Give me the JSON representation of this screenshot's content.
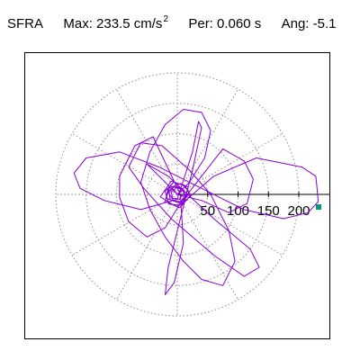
{
  "header": {
    "station": "SFRA",
    "max_label": "Max:",
    "max_value": "233.5",
    "max_unit": "cm/s",
    "max_unit_exp": "2",
    "per_label": "Per:",
    "per_value": "0.060 s",
    "ang_label": "Ang:",
    "ang_value": "-5.1"
  },
  "chart_data": {
    "type": "polar-orbit",
    "radial_ticks": [
      "50",
      "100",
      "150",
      "200"
    ],
    "radial_tick_values": [
      50,
      100,
      150,
      200
    ],
    "rmax": 250,
    "polar_grid": true,
    "max_amplitude": 233.5,
    "max_angle_deg": -5.1,
    "series": [
      {
        "color": "#8a00d4",
        "points": [
          [
            0,
            0
          ],
          [
            10,
            8
          ],
          [
            -12,
            14
          ],
          [
            -18,
            -6
          ],
          [
            8,
            -16
          ],
          [
            20,
            4
          ],
          [
            6,
            18
          ],
          [
            -15,
            10
          ],
          [
            -20,
            -12
          ],
          [
            4,
            -22
          ],
          [
            22,
            -2
          ],
          [
            12,
            15
          ],
          [
            -6,
            20
          ],
          [
            -20,
            5
          ],
          [
            -14,
            -16
          ],
          [
            8,
            -18
          ],
          [
            18,
            12
          ],
          [
            -10,
            22
          ],
          [
            -28,
            -4
          ],
          [
            -2,
            -20
          ],
          [
            16,
            -8
          ],
          [
            60,
            30
          ],
          [
            130,
            60
          ],
          [
            205,
            45
          ],
          [
            228,
            30
          ],
          [
            230,
            10
          ],
          [
            232,
            -12
          ],
          [
            215,
            -30
          ],
          [
            175,
            -40
          ],
          [
            110,
            -25
          ],
          [
            40,
            10
          ],
          [
            -30,
            45
          ],
          [
            -95,
            70
          ],
          [
            -150,
            60
          ],
          [
            -170,
            35
          ],
          [
            -160,
            10
          ],
          [
            -120,
            -10
          ],
          [
            -60,
            -25
          ],
          [
            0,
            -8
          ],
          [
            25,
            70
          ],
          [
            35,
            120
          ],
          [
            40,
            110
          ],
          [
            25,
            40
          ],
          [
            5,
            -40
          ],
          [
            -15,
            -120
          ],
          [
            -20,
            -165
          ],
          [
            -5,
            -145
          ],
          [
            10,
            -80
          ],
          [
            5,
            0
          ],
          [
            -40,
            95
          ],
          [
            -70,
            80
          ],
          [
            -95,
            30
          ],
          [
            -95,
            -5
          ],
          [
            -80,
            -45
          ],
          [
            -50,
            -70
          ],
          [
            -20,
            -55
          ],
          [
            5,
            -15
          ],
          [
            75,
            75
          ],
          [
            110,
            55
          ],
          [
            125,
            25
          ],
          [
            115,
            -15
          ],
          [
            85,
            -30
          ],
          [
            40,
            -10
          ],
          [
            0,
            0
          ],
          [
            -50,
            50
          ],
          [
            -15,
            30
          ],
          [
            60,
            -40
          ],
          [
            120,
            -90
          ],
          [
            135,
            -120
          ],
          [
            110,
            -135
          ],
          [
            60,
            -100
          ],
          [
            -10,
            -40
          ],
          [
            -55,
            10
          ],
          [
            -80,
            45
          ],
          [
            -60,
            85
          ],
          [
            -25,
            80
          ],
          [
            20,
            40
          ],
          [
            55,
            0
          ],
          [
            85,
            -60
          ],
          [
            95,
            -110
          ],
          [
            75,
            -150
          ],
          [
            40,
            -140
          ],
          [
            10,
            -110
          ],
          [
            -20,
            -70
          ],
          [
            -45,
            -25
          ],
          [
            -60,
            20
          ],
          [
            -45,
            70
          ],
          [
            -20,
            115
          ],
          [
            10,
            140
          ],
          [
            40,
            135
          ],
          [
            55,
            105
          ],
          [
            45,
            60
          ],
          [
            20,
            20
          ],
          [
            0,
            0
          ],
          [
            -8,
            10
          ],
          [
            -14,
            2
          ],
          [
            -6,
            -10
          ],
          [
            6,
            -12
          ],
          [
            12,
            -2
          ],
          [
            8,
            10
          ],
          [
            -4,
            14
          ],
          [
            -14,
            6
          ],
          [
            -12,
            -8
          ],
          [
            2,
            -14
          ],
          [
            14,
            -6
          ],
          [
            10,
            8
          ],
          [
            0,
            12
          ],
          [
            -10,
            4
          ],
          [
            -8,
            -6
          ],
          [
            4,
            -8
          ],
          [
            8,
            0
          ]
        ]
      }
    ],
    "marker": {
      "r": 233.5,
      "angle_deg": -5.1,
      "color": "#009b77",
      "shape": "square"
    }
  }
}
